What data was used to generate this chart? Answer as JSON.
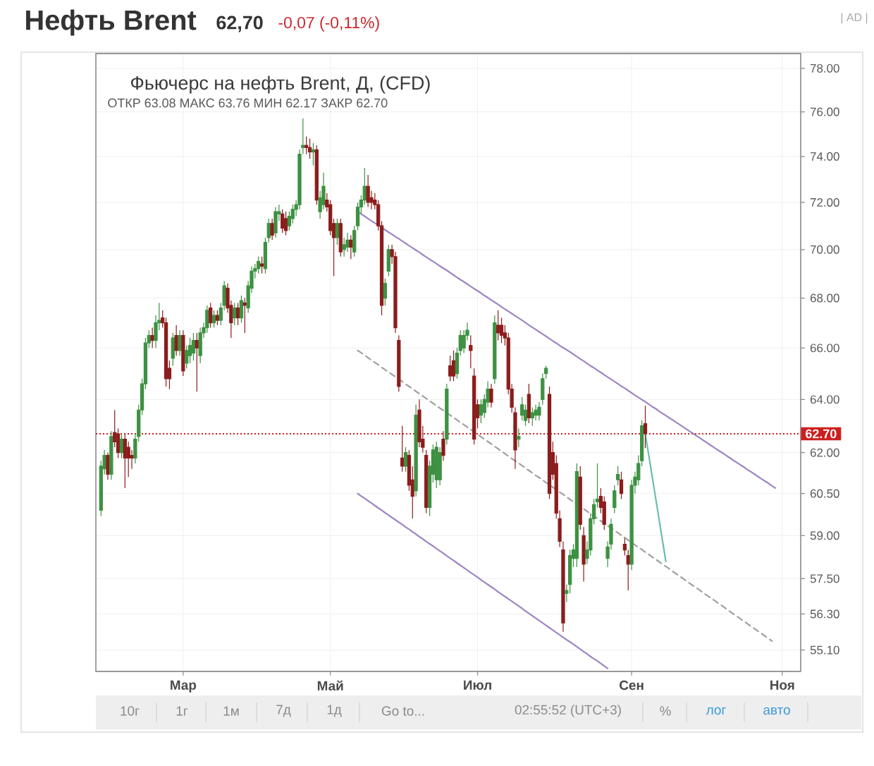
{
  "chart_data": {
    "type": "candlestick",
    "title": "Нефть Brent",
    "subtitle": "Фьючерс на нефть Brent, Д, (CFD)",
    "annotations": [
      "62,70",
      "-0,07 (-0,11%)",
      "ОТКР 63.08 МАКС 63.76 МИН 62.17 ЗАКР 62.70",
      "| AD |",
      "10г",
      "1г",
      "1м",
      "7д",
      "1д",
      "Go to...",
      "02:55:52 (UTC+3)",
      "%",
      "лог",
      "авто"
    ],
    "categories": [
      null,
      null,
      null,
      null,
      null,
      null,
      null,
      null,
      null,
      null,
      null,
      null,
      null,
      null,
      null,
      null,
      null,
      null,
      null,
      null,
      null,
      null,
      null,
      null,
      "Мар",
      null,
      null,
      null,
      null,
      null,
      null,
      null,
      null,
      null,
      null,
      null,
      null,
      null,
      null,
      null,
      null,
      null,
      null,
      null,
      null,
      null,
      null,
      null,
      null,
      null,
      null,
      null,
      null,
      null,
      null,
      null,
      null,
      null,
      null,
      null,
      null,
      null,
      null,
      null,
      null,
      null,
      null,
      "Май",
      null,
      null,
      null,
      null,
      null,
      null,
      null,
      null,
      null,
      null,
      null,
      null,
      null,
      null,
      null,
      null,
      null,
      null,
      null,
      null,
      null,
      null,
      null,
      null,
      null,
      null,
      null,
      null,
      null,
      null,
      null,
      null,
      null,
      null,
      null,
      null,
      null,
      null,
      null,
      null,
      null,
      null,
      "Июл",
      null,
      null,
      null,
      null,
      null,
      null,
      null,
      null,
      null,
      null,
      null,
      null,
      null,
      null,
      null,
      null,
      null,
      null,
      null,
      null,
      null,
      null,
      null,
      null,
      null,
      null,
      null,
      null,
      null,
      null,
      null,
      null,
      null,
      null,
      null,
      null,
      null,
      null,
      null,
      null,
      null,
      null,
      null,
      null,
      "Сен",
      null,
      null,
      null,
      null,
      null,
      null,
      null,
      null,
      null,
      null,
      null,
      null,
      null,
      null,
      null,
      null,
      null,
      null,
      null,
      null,
      null,
      null,
      null,
      null,
      null,
      null,
      null,
      null,
      null,
      null,
      null,
      null,
      null,
      null,
      null,
      null,
      null,
      null,
      null,
      null,
      null,
      null,
      null,
      "Ноя"
    ],
    "ohlc": [
      [
        59.9,
        61.7,
        59.7,
        61.5
      ],
      [
        61.4,
        62.1,
        61.2,
        61.9
      ],
      [
        61.9,
        62.0,
        61.0,
        61.2
      ],
      [
        61.2,
        62.8,
        61.0,
        62.6
      ],
      [
        62.75,
        63.6,
        62.2,
        62.4
      ],
      [
        62.7,
        62.9,
        61.8,
        62.0
      ],
      [
        62.0,
        62.7,
        61.8,
        62.5
      ],
      [
        62.5,
        62.7,
        60.7,
        61.8
      ],
      [
        62.2,
        62.4,
        61.1,
        61.8
      ],
      [
        61.9,
        62.1,
        61.4,
        61.8
      ],
      [
        61.8,
        62.7,
        61.6,
        62.5
      ],
      [
        62.6,
        63.8,
        62.4,
        63.6
      ],
      [
        63.6,
        64.8,
        63.4,
        64.6
      ],
      [
        64.6,
        66.4,
        64.4,
        66.2
      ],
      [
        66.2,
        66.7,
        66.0,
        66.5
      ],
      [
        66.5,
        66.8,
        66.0,
        66.3
      ],
      [
        66.3,
        67.3,
        66.0,
        67.0
      ],
      [
        67.0,
        67.8,
        66.7,
        67.1
      ],
      [
        67.2,
        67.5,
        66.8,
        67.0
      ],
      [
        67.0,
        67.2,
        64.5,
        64.8
      ],
      [
        65.2,
        65.5,
        64.4,
        64.8
      ],
      [
        65.6,
        66.6,
        65.3,
        66.4
      ],
      [
        66.5,
        66.9,
        65.7,
        65.9
      ],
      [
        65.9,
        66.7,
        65.7,
        66.5
      ],
      [
        66.5,
        66.7,
        64.9,
        65.1
      ],
      [
        65.4,
        66.1,
        65.2,
        65.9
      ],
      [
        65.7,
        66.4,
        65.4,
        66.1
      ],
      [
        65.8,
        66.6,
        65.5,
        66.3
      ],
      [
        66.3,
        66.6,
        64.3,
        66.0
      ],
      [
        65.7,
        66.8,
        65.4,
        66.6
      ],
      [
        66.6,
        67.0,
        66.4,
        66.8
      ],
      [
        66.8,
        67.7,
        66.6,
        67.5
      ],
      [
        67.6,
        67.8,
        66.8,
        67.0
      ],
      [
        67.0,
        67.5,
        66.8,
        67.3
      ],
      [
        67.3,
        67.5,
        66.9,
        67.1
      ],
      [
        67.1,
        67.8,
        66.9,
        67.6
      ],
      [
        67.7,
        68.7,
        67.5,
        68.5
      ],
      [
        68.4,
        68.6,
        67.4,
        67.6
      ],
      [
        67.7,
        67.9,
        66.4,
        67.0
      ],
      [
        67.2,
        67.8,
        66.9,
        67.6
      ],
      [
        67.6,
        67.8,
        66.9,
        67.2
      ],
      [
        67.2,
        68.1,
        67.0,
        67.9
      ],
      [
        67.8,
        68.0,
        66.6,
        67.7
      ],
      [
        67.6,
        68.7,
        67.4,
        68.5
      ],
      [
        68.4,
        69.3,
        68.2,
        69.1
      ],
      [
        69.1,
        69.4,
        68.8,
        69.2
      ],
      [
        69.2,
        69.7,
        69.0,
        69.5
      ],
      [
        69.4,
        69.7,
        69.0,
        69.3
      ],
      [
        69.2,
        70.5,
        69.0,
        70.3
      ],
      [
        70.5,
        71.3,
        70.3,
        71.1
      ],
      [
        71.1,
        71.3,
        70.4,
        70.6
      ],
      [
        70.7,
        71.8,
        70.5,
        71.6
      ],
      [
        71.5,
        71.9,
        71.2,
        71.6
      ],
      [
        71.5,
        71.7,
        70.7,
        70.9
      ],
      [
        71.3,
        71.6,
        70.6,
        70.8
      ],
      [
        71.0,
        71.6,
        70.8,
        71.4
      ],
      [
        71.3,
        71.9,
        71.1,
        71.7
      ],
      [
        71.7,
        72.1,
        71.4,
        71.9
      ],
      [
        71.9,
        74.3,
        71.7,
        74.1
      ],
      [
        74.4,
        75.7,
        74.1,
        74.5
      ],
      [
        74.5,
        74.9,
        74.1,
        74.4
      ],
      [
        74.4,
        74.8,
        73.9,
        74.2
      ],
      [
        74.2,
        74.6,
        73.6,
        74.3
      ],
      [
        74.3,
        74.5,
        71.9,
        72.1
      ],
      [
        71.6,
        72.5,
        71.3,
        72.2
      ],
      [
        71.9,
        73.3,
        71.7,
        72.7
      ],
      [
        72.1,
        72.4,
        71.6,
        71.8
      ],
      [
        71.9,
        72.1,
        70.6,
        70.8
      ],
      [
        71.1,
        71.3,
        68.9,
        70.5
      ],
      [
        70.5,
        71.3,
        70.2,
        71.1
      ],
      [
        71.1,
        71.3,
        69.7,
        69.9
      ],
      [
        70.0,
        70.5,
        69.7,
        70.2
      ],
      [
        70.1,
        70.7,
        69.9,
        70.4
      ],
      [
        70.4,
        70.6,
        69.6,
        70.1
      ],
      [
        69.9,
        71.0,
        69.7,
        70.8
      ],
      [
        71.0,
        72.0,
        70.8,
        71.8
      ],
      [
        71.8,
        72.3,
        71.5,
        72.1
      ],
      [
        72.1,
        73.5,
        71.9,
        72.7
      ],
      [
        72.7,
        73.2,
        71.8,
        72.0
      ],
      [
        72.2,
        72.5,
        71.7,
        72.0
      ],
      [
        72.1,
        72.4,
        71.7,
        71.9
      ],
      [
        71.9,
        72.1,
        70.8,
        71.0
      ],
      [
        71.0,
        71.2,
        67.3,
        67.7
      ],
      [
        68.0,
        68.8,
        67.7,
        68.6
      ],
      [
        69.1,
        70.2,
        68.9,
        70.0
      ],
      [
        70.0,
        70.2,
        69.4,
        69.7
      ],
      [
        69.7,
        69.9,
        66.6,
        66.8
      ],
      [
        66.3,
        66.5,
        64.3,
        64.5
      ],
      [
        61.8,
        63.0,
        61.3,
        61.5
      ],
      [
        61.5,
        62.2,
        61.3,
        62.0
      ],
      [
        61.9,
        62.1,
        60.6,
        60.8
      ],
      [
        61.0,
        61.5,
        59.6,
        60.4
      ],
      [
        60.6,
        63.8,
        60.4,
        63.4
      ],
      [
        63.6,
        64.0,
        62.2,
        62.4
      ],
      [
        62.5,
        63.0,
        62.0,
        62.2
      ],
      [
        61.9,
        62.1,
        59.8,
        60.0
      ],
      [
        60.0,
        61.7,
        59.7,
        61.5
      ],
      [
        61.2,
        62.3,
        60.9,
        62.1
      ],
      [
        61.0,
        62.4,
        60.7,
        62.2
      ],
      [
        61.0,
        62.2,
        60.8,
        62.0
      ],
      [
        62.5,
        62.8,
        61.7,
        61.9
      ],
      [
        62.5,
        64.6,
        62.3,
        64.4
      ],
      [
        65.3,
        65.7,
        64.7,
        64.9
      ],
      [
        65.5,
        65.9,
        64.7,
        64.9
      ],
      [
        65.0,
        66.0,
        64.8,
        65.8
      ],
      [
        65.9,
        66.7,
        65.7,
        66.5
      ],
      [
        66.0,
        66.7,
        65.8,
        66.5
      ],
      [
        66.5,
        67.0,
        66.3,
        66.7
      ],
      [
        66.1,
        66.5,
        65.2,
        65.9
      ],
      [
        64.9,
        65.2,
        62.3,
        62.5
      ],
      [
        63.8,
        64.0,
        62.9,
        63.3
      ],
      [
        63.4,
        64.0,
        63.1,
        63.8
      ],
      [
        63.5,
        64.2,
        63.3,
        64.0
      ],
      [
        63.9,
        64.7,
        63.7,
        64.4
      ],
      [
        64.4,
        64.6,
        63.7,
        63.9
      ],
      [
        64.8,
        67.3,
        64.6,
        67.0
      ],
      [
        66.9,
        67.5,
        66.3,
        66.6
      ],
      [
        66.9,
        67.2,
        66.2,
        66.5
      ],
      [
        66.6,
        66.9,
        66.1,
        66.4
      ],
      [
        66.4,
        66.6,
        64.2,
        64.4
      ],
      [
        64.4,
        64.6,
        63.5,
        63.7
      ],
      [
        63.5,
        63.7,
        61.4,
        62.1
      ],
      [
        62.5,
        62.9,
        62.2,
        62.6
      ],
      [
        63.4,
        64.1,
        63.2,
        63.8
      ],
      [
        63.2,
        63.8,
        63.0,
        63.6
      ],
      [
        64.2,
        64.6,
        63.1,
        63.3
      ],
      [
        63.3,
        63.7,
        63.0,
        63.5
      ],
      [
        63.4,
        63.8,
        63.2,
        63.6
      ],
      [
        63.4,
        63.9,
        63.2,
        63.7
      ],
      [
        64.0,
        65.0,
        63.8,
        64.8
      ],
      [
        65.0,
        65.3,
        64.8,
        65.2
      ],
      [
        64.2,
        64.5,
        60.3,
        60.5
      ],
      [
        62.0,
        62.4,
        61.0,
        61.2
      ],
      [
        61.6,
        61.9,
        59.6,
        59.8
      ],
      [
        59.6,
        59.9,
        58.6,
        58.8
      ],
      [
        58.5,
        58.8,
        55.7,
        56.0
      ],
      [
        57.0,
        57.3,
        56.7,
        57.1
      ],
      [
        57.3,
        58.5,
        57.0,
        58.3
      ],
      [
        58.2,
        58.7,
        57.9,
        58.5
      ],
      [
        58.2,
        61.6,
        57.9,
        61.3
      ],
      [
        61.1,
        61.5,
        59.2,
        59.4
      ],
      [
        59.0,
        59.3,
        57.4,
        58.0
      ],
      [
        58.2,
        58.8,
        58.0,
        58.5
      ],
      [
        58.5,
        59.8,
        58.3,
        59.6
      ],
      [
        59.6,
        60.3,
        59.4,
        60.1
      ],
      [
        60.2,
        61.6,
        60.0,
        60.3
      ],
      [
        60.4,
        60.7,
        59.8,
        60.0
      ],
      [
        60.2,
        60.4,
        59.2,
        59.4
      ],
      [
        58.2,
        58.8,
        57.9,
        58.6
      ],
      [
        58.7,
        59.6,
        58.5,
        59.4
      ],
      [
        60.0,
        60.8,
        59.8,
        60.6
      ],
      [
        61.0,
        61.5,
        60.8,
        61.2
      ],
      [
        61.0,
        61.3,
        60.3,
        60.5
      ],
      [
        58.7,
        58.9,
        58.3,
        58.5
      ],
      [
        58.3,
        58.5,
        57.1,
        58.0
      ],
      [
        58.0,
        61.0,
        57.8,
        60.8
      ],
      [
        60.8,
        61.3,
        60.5,
        61.1
      ],
      [
        61.0,
        61.9,
        60.8,
        61.6
      ],
      [
        61.7,
        63.2,
        61.5,
        63.0
      ],
      [
        63.08,
        63.76,
        62.17,
        62.7
      ],
      null,
      null,
      null,
      null,
      null,
      null,
      null,
      null,
      null,
      null,
      null,
      null,
      null,
      null,
      null,
      null,
      null,
      null,
      null,
      null,
      null,
      null,
      null,
      null,
      null,
      null,
      null,
      null,
      null,
      null,
      null,
      null,
      null,
      null,
      null,
      null,
      null,
      null,
      null,
      null
    ],
    "colors": [
      "#3d9142",
      "#3d9142",
      "#8b1d1d",
      "#3d9142",
      "#8b1d1d",
      "#8b1d1d",
      "#3d9142",
      "#8b1d1d",
      "#8b1d1d",
      "#8b1d1d",
      "#3d9142",
      "#3d9142",
      "#3d9142",
      "#3d9142",
      "#3d9142",
      "#8b1d1d",
      "#3d9142",
      "#3d9142",
      "#8b1d1d",
      "#8b1d1d",
      "#8b1d1d",
      "#3d9142",
      "#8b1d1d",
      "#3d9142",
      "#8b1d1d",
      "#3d9142",
      "#3d9142",
      "#3d9142",
      "#8b1d1d",
      "#3d9142",
      "#3d9142",
      "#3d9142",
      "#8b1d1d",
      "#3d9142",
      "#8b1d1d",
      "#3d9142",
      "#3d9142",
      "#8b1d1d",
      "#8b1d1d",
      "#3d9142",
      "#8b1d1d",
      "#3d9142",
      "#8b1d1d",
      "#3d9142",
      "#3d9142",
      "#3d9142",
      "#3d9142",
      "#8b1d1d",
      "#3d9142",
      "#3d9142",
      "#8b1d1d",
      "#3d9142",
      "#3d9142",
      "#8b1d1d",
      "#8b1d1d",
      "#3d9142",
      "#3d9142",
      "#3d9142",
      "#3d9142",
      "#3d9142",
      "#8b1d1d",
      "#8b1d1d",
      "#3d9142",
      "#8b1d1d",
      "#3d9142",
      "#3d9142",
      "#8b1d1d",
      "#8b1d1d",
      "#8b1d1d",
      "#3d9142",
      "#8b1d1d",
      "#3d9142",
      "#3d9142",
      "#8b1d1d",
      "#3d9142",
      "#3d9142",
      "#3d9142",
      "#3d9142",
      "#8b1d1d",
      "#8b1d1d",
      "#8b1d1d",
      "#8b1d1d",
      "#8b1d1d",
      "#3d9142",
      "#3d9142",
      "#8b1d1d",
      "#8b1d1d",
      "#8b1d1d",
      "#8b1d1d",
      "#3d9142",
      "#8b1d1d",
      "#8b1d1d",
      "#3d9142",
      "#8b1d1d",
      "#8b1d1d",
      "#8b1d1d",
      "#3d9142",
      "#3d9142",
      "#3d9142",
      "#3d9142",
      "#8b1d1d",
      "#3d9142",
      "#8b1d1d",
      "#8b1d1d",
      "#3d9142",
      "#3d9142",
      "#3d9142",
      "#3d9142",
      "#8b1d1d",
      "#8b1d1d",
      "#8b1d1d",
      "#3d9142",
      "#3d9142",
      "#3d9142",
      "#8b1d1d",
      "#3d9142",
      "#8b1d1d",
      "#8b1d1d",
      "#8b1d1d",
      "#8b1d1d",
      "#8b1d1d",
      "#8b1d1d",
      "#3d9142",
      "#3d9142",
      "#3d9142",
      "#8b1d1d",
      "#3d9142",
      "#3d9142",
      "#3d9142",
      "#3d9142",
      "#3d9142",
      "#8b1d1d",
      "#8b1d1d",
      "#8b1d1d",
      "#8b1d1d",
      "#8b1d1d",
      "#3d9142",
      "#3d9142",
      "#3d9142",
      "#3d9142",
      "#8b1d1d",
      "#8b1d1d",
      "#3d9142",
      "#3d9142",
      "#3d9142",
      "#3d9142",
      "#8b1d1d",
      "#8b1d1d",
      "#3d9142",
      "#3d9142",
      "#3d9142",
      "#3d9142",
      "#8b1d1d",
      "#8b1d1d",
      "#8b1d1d",
      "#3d9142",
      "#3d9142",
      "#3d9142",
      "#3d9142",
      "#8b1d1d",
      null,
      null,
      null,
      null,
      null,
      null,
      null,
      null,
      null,
      null,
      null,
      null,
      null,
      null,
      null,
      null,
      null,
      null,
      null,
      null,
      null,
      null,
      null,
      null,
      null,
      null,
      null,
      null,
      null,
      null,
      null,
      null,
      null,
      null,
      null,
      null,
      null,
      null,
      null,
      null
    ],
    "series": [
      {
        "type": "line",
        "color": "#9d86c4",
        "values": [
          null,
          null,
          null,
          null,
          null,
          null,
          null,
          null,
          null,
          null,
          null,
          null,
          null,
          null,
          null,
          null,
          null,
          null,
          null,
          null,
          null,
          null,
          null,
          null,
          null,
          null,
          null,
          null,
          null,
          null,
          null,
          null,
          null,
          null,
          null,
          null,
          null,
          null,
          null,
          null,
          null,
          null,
          null,
          null,
          null,
          null,
          null,
          null,
          null,
          null,
          null,
          null,
          null,
          null,
          null,
          null,
          null,
          null,
          null,
          null,
          null,
          null,
          null,
          null,
          null,
          null,
          null,
          null,
          null,
          null,
          null,
          null,
          null,
          null,
          null,
          71.6,
          71.5,
          71.41,
          71.31,
          71.21,
          71.12,
          71.02,
          70.93,
          70.83,
          70.73,
          70.64,
          70.54,
          70.45,
          70.35,
          70.26,
          70.16,
          70.07,
          69.97,
          69.88,
          69.78,
          69.69,
          69.59,
          69.5,
          69.41,
          69.31,
          69.22,
          69.13,
          69.03,
          68.94,
          68.84,
          68.75,
          68.66,
          68.57,
          68.47,
          68.38,
          68.29,
          68.2,
          68.1,
          68.01,
          67.92,
          67.83,
          67.74,
          67.64,
          67.55,
          67.46,
          67.37,
          67.28,
          67.19,
          67.1,
          67.01,
          66.91,
          66.82,
          66.73,
          66.64,
          66.55,
          66.46,
          66.37,
          66.28,
          66.19,
          66.1,
          66.01,
          65.93,
          65.84,
          65.75,
          65.66,
          65.57,
          65.48,
          65.39,
          65.3,
          65.22,
          65.13,
          65.04,
          64.95,
          64.86,
          64.78,
          64.69,
          64.6,
          64.51,
          64.43,
          64.34,
          64.25,
          64.16,
          64.08,
          63.99,
          63.91,
          63.82,
          63.73,
          63.65,
          63.56,
          63.47,
          63.39,
          63.3,
          63.22,
          63.13,
          63.05,
          62.96,
          62.88,
          62.79,
          62.71,
          62.62,
          62.54,
          62.45,
          62.37,
          62.28,
          62.2,
          62.11,
          62.03,
          61.95,
          61.86,
          61.78,
          61.69,
          61.61,
          61.53,
          61.45,
          61.36,
          61.28,
          61.2,
          61.11,
          61.03,
          60.95,
          60.87,
          60.78,
          60.7,
          null,
          null
        ]
      },
      {
        "type": "line",
        "color": "#9d86c4",
        "values": [
          null,
          null,
          null,
          null,
          null,
          null,
          null,
          null,
          null,
          null,
          null,
          null,
          null,
          null,
          null,
          null,
          null,
          null,
          null,
          null,
          null,
          null,
          null,
          null,
          null,
          null,
          null,
          null,
          null,
          null,
          null,
          null,
          null,
          null,
          null,
          null,
          null,
          null,
          null,
          null,
          null,
          null,
          null,
          null,
          null,
          null,
          null,
          null,
          null,
          null,
          null,
          null,
          null,
          null,
          null,
          null,
          null,
          null,
          null,
          null,
          null,
          null,
          null,
          null,
          null,
          null,
          null,
          null,
          null,
          null,
          null,
          null,
          null,
          null,
          null,
          60.5,
          60.41,
          60.33,
          60.24,
          60.16,
          60.07,
          59.98,
          59.9,
          59.81,
          59.73,
          59.64,
          59.56,
          59.47,
          59.39,
          59.3,
          59.22,
          59.13,
          59.05,
          58.96,
          58.88,
          58.79,
          58.71,
          58.63,
          58.54,
          58.46,
          58.38,
          58.29,
          58.21,
          58.13,
          58.04,
          57.96,
          57.88,
          57.79,
          57.71,
          57.63,
          57.55,
          57.46,
          57.38,
          57.3,
          57.22,
          57.14,
          57.05,
          56.97,
          56.89,
          56.81,
          56.73,
          56.65,
          56.57,
          56.49,
          56.4,
          56.32,
          56.24,
          56.16,
          56.08,
          56.0,
          55.92,
          55.84,
          55.76,
          55.68,
          55.6,
          55.52,
          55.44,
          55.37,
          55.29,
          55.21,
          55.13,
          55.05,
          54.97,
          54.89,
          54.81,
          54.74,
          54.66,
          54.58,
          54.5,
          null,
          null,
          null,
          null,
          null,
          null,
          null,
          null,
          null,
          null,
          null,
          null,
          null,
          null,
          null,
          null,
          null,
          null,
          null,
          null,
          null,
          null,
          null,
          null,
          null,
          null,
          null,
          null,
          null,
          null,
          null,
          null,
          null,
          null,
          null,
          null,
          null,
          null,
          null,
          null,
          null,
          null,
          null,
          null,
          null,
          null,
          null,
          null,
          null,
          null,
          null
        ]
      },
      {
        "type": "line",
        "color": "#a0a0a0",
        "line_style": "dashed",
        "values": [
          null,
          null,
          null,
          null,
          null,
          null,
          null,
          null,
          null,
          null,
          null,
          null,
          null,
          null,
          null,
          null,
          null,
          null,
          null,
          null,
          null,
          null,
          null,
          null,
          null,
          null,
          null,
          null,
          null,
          null,
          null,
          null,
          null,
          null,
          null,
          null,
          null,
          null,
          null,
          null,
          null,
          null,
          null,
          null,
          null,
          null,
          null,
          null,
          null,
          null,
          null,
          null,
          null,
          null,
          null,
          null,
          null,
          null,
          null,
          null,
          null,
          null,
          null,
          null,
          null,
          null,
          null,
          null,
          null,
          null,
          null,
          null,
          null,
          null,
          null,
          65.9,
          65.81,
          65.71,
          65.62,
          65.52,
          65.43,
          65.34,
          65.24,
          65.15,
          65.06,
          64.96,
          64.87,
          64.78,
          64.69,
          64.59,
          64.5,
          64.41,
          64.31,
          64.22,
          64.13,
          64.04,
          63.95,
          63.85,
          63.76,
          63.67,
          63.58,
          63.49,
          63.4,
          63.31,
          63.22,
          63.13,
          63.04,
          62.95,
          62.86,
          62.77,
          62.68,
          62.59,
          62.5,
          62.41,
          62.32,
          62.23,
          62.14,
          62.05,
          61.96,
          61.87,
          61.78,
          61.69,
          61.61,
          61.52,
          61.43,
          61.34,
          61.25,
          61.16,
          61.08,
          60.99,
          60.9,
          60.82,
          60.73,
          60.64,
          60.55,
          60.47,
          60.38,
          60.29,
          60.21,
          60.12,
          60.04,
          59.95,
          59.86,
          59.78,
          59.69,
          59.61,
          59.52,
          59.44,
          59.35,
          59.27,
          59.18,
          59.1,
          59.01,
          58.93,
          58.84,
          58.76,
          58.67,
          58.59,
          58.51,
          58.42,
          58.34,
          58.25,
          58.17,
          58.09,
          58.0,
          57.92,
          57.84,
          57.75,
          57.67,
          57.59,
          57.51,
          57.42,
          57.34,
          57.26,
          57.18,
          57.1,
          57.01,
          56.93,
          56.85,
          56.77,
          56.69,
          56.61,
          56.53,
          56.45,
          56.36,
          56.28,
          56.2,
          56.12,
          56.04,
          55.96,
          55.88,
          55.8,
          55.72,
          55.64,
          55.56,
          55.48,
          55.4,
          null,
          null,
          null
        ]
      },
      {
        "type": "line",
        "color": "#6cbcae",
        "values": [
          null,
          null,
          null,
          null,
          null,
          null,
          null,
          null,
          null,
          null,
          null,
          null,
          null,
          null,
          null,
          null,
          null,
          null,
          null,
          null,
          null,
          null,
          null,
          null,
          null,
          null,
          null,
          null,
          null,
          null,
          null,
          null,
          null,
          null,
          null,
          null,
          null,
          null,
          null,
          null,
          null,
          null,
          null,
          null,
          null,
          null,
          null,
          null,
          null,
          null,
          null,
          null,
          null,
          null,
          null,
          null,
          null,
          null,
          null,
          null,
          null,
          null,
          null,
          null,
          null,
          null,
          null,
          null,
          null,
          null,
          null,
          null,
          null,
          null,
          null,
          null,
          null,
          null,
          null,
          null,
          null,
          null,
          null,
          null,
          null,
          null,
          null,
          null,
          null,
          null,
          null,
          null,
          null,
          null,
          null,
          null,
          null,
          null,
          null,
          null,
          null,
          null,
          null,
          null,
          null,
          null,
          null,
          null,
          null,
          null,
          null,
          null,
          null,
          null,
          null,
          null,
          null,
          null,
          null,
          null,
          null,
          null,
          null,
          null,
          null,
          null,
          null,
          null,
          null,
          null,
          null,
          null,
          null,
          null,
          null,
          null,
          null,
          null,
          null,
          null,
          null,
          null,
          null,
          null,
          null,
          null,
          null,
          null,
          null,
          null,
          null,
          null,
          null,
          null,
          null,
          null,
          null,
          null,
          null,
          62.7,
          61.91,
          61.13,
          60.36,
          59.6,
          58.84,
          58.1,
          null,
          null,
          null,
          null,
          null,
          null,
          null,
          null,
          null,
          null,
          null,
          null,
          null,
          null,
          null,
          null,
          null,
          null,
          null,
          null,
          null,
          null,
          null,
          null,
          null,
          null,
          null,
          null,
          null,
          null,
          null,
          null,
          null,
          null
        ]
      }
    ],
    "log": true,
    "grid": true,
    "ylim": [
      54.4,
      78.7
    ],
    "yticks": [
      {
        "value": 78,
        "label": "78.00"
      },
      {
        "value": 76,
        "label": "76.00"
      },
      {
        "value": 74,
        "label": "74.00"
      },
      {
        "value": 72,
        "label": "72.00"
      },
      {
        "value": 70,
        "label": "70.00"
      },
      {
        "value": 68,
        "label": "68.00"
      },
      {
        "value": 66,
        "label": "66.00"
      },
      {
        "value": 64,
        "label": "64.00"
      },
      {
        "value": 62,
        "label": "62.00"
      },
      {
        "value": 60.5,
        "label": "60.50"
      },
      {
        "value": 59,
        "label": "59.00"
      },
      {
        "value": 57.5,
        "label": "57.50"
      },
      {
        "value": 56.3,
        "label": "56.30"
      },
      {
        "value": 55.1,
        "label": "55.10"
      }
    ],
    "ref_lines": [
      {
        "axis": "y",
        "value": 62.7,
        "label": "62.70",
        "color": "#cc1f1f",
        "line_style": "dotted"
      }
    ]
  }
}
